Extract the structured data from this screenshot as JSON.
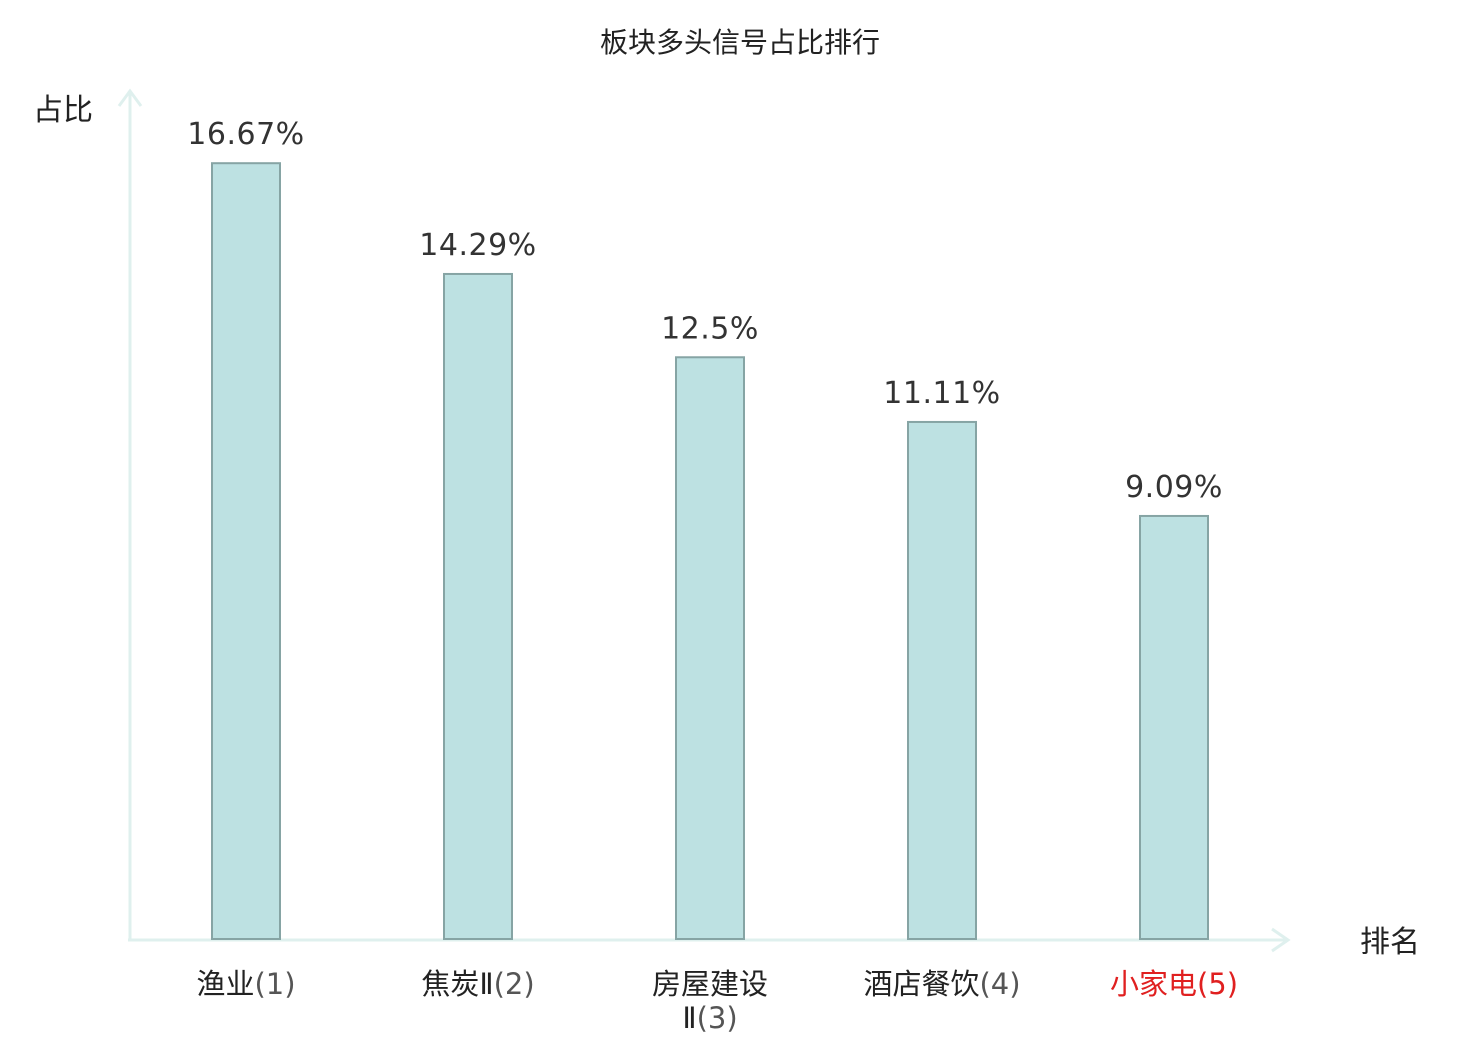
{
  "chart_data": {
    "type": "bar",
    "title": "板块多头信号占比排行",
    "ylabel": "占比",
    "xlabel": "排名",
    "categories": [
      {
        "name": "渔业",
        "rank": "(1)",
        "lines": [
          [
            "渔业",
            "(1)"
          ]
        ]
      },
      {
        "name": "焦炭Ⅱ",
        "rank": "(2)",
        "lines": [
          [
            "焦炭Ⅱ",
            "(2)"
          ]
        ]
      },
      {
        "name": "房屋建设Ⅱ",
        "rank": "(3)",
        "lines": [
          [
            "房屋建设",
            ""
          ],
          [
            "Ⅱ",
            "(3)"
          ]
        ]
      },
      {
        "name": "酒店餐饮",
        "rank": "(4)",
        "lines": [
          [
            "酒店餐饮",
            "(4)"
          ]
        ]
      },
      {
        "name": "小家电",
        "rank": "(5)",
        "lines": [
          [
            "小家电",
            "(5)"
          ]
        ]
      }
    ],
    "values": [
      16.67,
      14.29,
      12.5,
      11.11,
      9.09
    ],
    "value_labels": [
      "16.67%",
      "14.29%",
      "12.5%",
      "11.11%",
      "9.09%"
    ],
    "ylim": [
      0,
      18.2
    ],
    "grid": false,
    "highlight_index": 4,
    "colors": {
      "bar_fill": "#bde1e2",
      "bar_stroke": "#86a4a4",
      "axis": "#dff0ee",
      "text": "#222222",
      "rank_text": "#555555",
      "highlight": "#e02020"
    }
  }
}
